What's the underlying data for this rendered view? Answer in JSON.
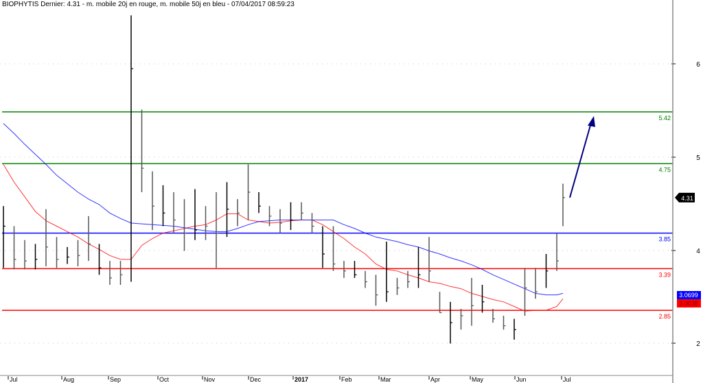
{
  "title": "BIOPHYTIS Dernier: 4.31 - m. mobile 20j en rouge, m. mobile 50j en bleu - 07/04/2017 08:59:23",
  "chart_data": {
    "type": "ohlc-bar",
    "title": "BIOPHYTIS Dernier: 4.31 - m. mobile 20j en rouge, m. mobile 50j en bleu - 07/04/2017 08:59:23",
    "y_tick_labels": [
      "6",
      "5",
      "4",
      "2"
    ],
    "x_tick_labels": [
      {
        "label": "Jul",
        "bold": false
      },
      {
        "label": "Aug",
        "bold": false
      },
      {
        "label": "Sep",
        "bold": false
      },
      {
        "label": "Oct",
        "bold": false
      },
      {
        "label": "Nov",
        "bold": false
      },
      {
        "label": "Dec",
        "bold": false
      },
      {
        "label": "2017",
        "bold": true
      },
      {
        "label": "Feb",
        "bold": false
      },
      {
        "label": "Mar",
        "bold": false
      },
      {
        "label": "Apr",
        "bold": false
      },
      {
        "label": "May",
        "bold": false
      },
      {
        "label": "Jun",
        "bold": false
      },
      {
        "label": "Jul",
        "bold": false
      }
    ],
    "grid": "dotted horizontal",
    "last_price": {
      "value": "4.31",
      "color": "#000000"
    },
    "ma50_label": {
      "value": "3.0699",
      "color": "#0000ff"
    },
    "ma20_label": {
      "value": "3.0038",
      "color": "#ff0000"
    },
    "levels": [
      {
        "value": 5.42,
        "label": "5.42",
        "color": "#008000"
      },
      {
        "value": 4.75,
        "label": "4.75",
        "color": "#008000"
      },
      {
        "value": 3.85,
        "label": "3.85",
        "color": "#0000ff"
      },
      {
        "value": 3.39,
        "label": "3.39",
        "color": "#ff0000"
      },
      {
        "value": 2.85,
        "label": "2.85",
        "color": "#ff0000"
      }
    ],
    "arrow": {
      "from": 4.31,
      "to": 5.42,
      "color": "#000080"
    },
    "dates": [
      "2016-06-27",
      "2016-07-04",
      "2016-07-11",
      "2016-07-18",
      "2016-07-25",
      "2016-08-01",
      "2016-08-08",
      "2016-08-15",
      "2016-08-22",
      "2016-08-29",
      "2016-09-05",
      "2016-09-12",
      "2016-09-19",
      "2016-09-26",
      "2016-10-03",
      "2016-10-10",
      "2016-10-17",
      "2016-10-24",
      "2016-10-31",
      "2016-11-07",
      "2016-11-14",
      "2016-11-21",
      "2016-11-28",
      "2016-12-05",
      "2016-12-12",
      "2016-12-19",
      "2016-12-26",
      "2017-01-02",
      "2017-01-09",
      "2017-01-16",
      "2017-01-23",
      "2017-01-30",
      "2017-02-06",
      "2017-02-13",
      "2017-02-20",
      "2017-02-27",
      "2017-03-06",
      "2017-03-13",
      "2017-03-20",
      "2017-03-27",
      "2017-04-03",
      "2017-04-10",
      "2017-04-17",
      "2017-04-24",
      "2017-05-01",
      "2017-05-08",
      "2017-05-15",
      "2017-05-22",
      "2017-05-29",
      "2017-06-05",
      "2017-06-12",
      "2017-06-19",
      "2017-06-26",
      "2017-07-03"
    ],
    "high": [
      4.2,
      3.94,
      3.76,
      3.71,
      4.16,
      3.8,
      3.67,
      3.76,
      4.07,
      3.71,
      3.49,
      3.49,
      6.67,
      5.45,
      4.65,
      4.47,
      4.38,
      4.29,
      4.42,
      4.2,
      4.38,
      4.51,
      4.29,
      4.74,
      4.38,
      4.2,
      4.16,
      4.25,
      4.25,
      4.11,
      3.94,
      3.94,
      3.49,
      3.49,
      3.36,
      3.31,
      3.74,
      3.27,
      3.36,
      3.67,
      3.8,
      3.09,
      2.96,
      2.87,
      3.27,
      3.18,
      2.87,
      2.78,
      2.74,
      3.4,
      3.4,
      3.58,
      3.85,
      4.49
    ],
    "low": [
      3.4,
      3.38,
      3.38,
      3.38,
      3.42,
      3.4,
      3.45,
      3.42,
      3.49,
      3.31,
      3.18,
      3.18,
      3.22,
      4.38,
      3.89,
      3.94,
      3.85,
      3.62,
      3.76,
      3.76,
      3.4,
      3.8,
      3.94,
      4.02,
      4.11,
      3.94,
      3.85,
      3.89,
      4.02,
      3.85,
      3.4,
      3.36,
      3.27,
      3.27,
      3.14,
      2.91,
      2.96,
      3.05,
      3.14,
      3.14,
      3.22,
      2.82,
      2.42,
      2.6,
      2.65,
      2.82,
      2.69,
      2.6,
      2.47,
      2.78,
      3.0,
      3.14,
      3.36,
      3.94
    ],
    "close": [
      3.94,
      3.51,
      3.49,
      3.51,
      3.67,
      3.51,
      3.54,
      3.56,
      3.71,
      3.4,
      3.27,
      3.31,
      5.98,
      4.69,
      4.2,
      4.11,
      4.02,
      3.85,
      3.89,
      3.94,
      3.85,
      4.16,
      4.11,
      4.38,
      4.2,
      4.07,
      3.98,
      4.02,
      4.11,
      3.94,
      3.58,
      3.45,
      3.36,
      3.31,
      3.22,
      3.05,
      3.09,
      3.14,
      3.22,
      3.31,
      3.36,
      2.82,
      2.69,
      2.78,
      2.91,
      2.96,
      2.74,
      2.65,
      2.6,
      3.14,
      3.09,
      3.36,
      3.49,
      4.31
    ],
    "series": [
      {
        "name": "m. mobile 20j",
        "color": "#ff0000",
        "values": [
          4.74,
          4.51,
          4.32,
          4.13,
          4.01,
          3.94,
          3.87,
          3.8,
          3.71,
          3.64,
          3.56,
          3.51,
          3.51,
          3.69,
          3.78,
          3.85,
          3.88,
          3.91,
          3.94,
          3.96,
          4.02,
          4.1,
          4.1,
          4.02,
          4.0,
          3.98,
          3.99,
          4.01,
          4.02,
          4.02,
          3.96,
          3.87,
          3.78,
          3.67,
          3.58,
          3.45,
          3.38,
          3.36,
          3.31,
          3.27,
          3.22,
          3.2,
          3.16,
          3.13,
          3.07,
          3.03,
          2.99,
          2.96,
          2.9,
          2.84,
          2.85,
          2.85,
          2.9,
          3.0
        ]
      },
      {
        "name": "m. mobile 50j",
        "color": "#0000ff",
        "values": [
          5.27,
          5.14,
          5.0,
          4.87,
          4.74,
          4.6,
          4.49,
          4.38,
          4.29,
          4.22,
          4.11,
          4.04,
          3.98,
          3.97,
          3.96,
          3.95,
          3.94,
          3.92,
          3.9,
          3.88,
          3.87,
          3.87,
          3.91,
          3.96,
          4.0,
          4.01,
          4.02,
          4.02,
          4.02,
          4.02,
          4.02,
          4.02,
          3.96,
          3.91,
          3.85,
          3.8,
          3.77,
          3.74,
          3.7,
          3.67,
          3.62,
          3.58,
          3.53,
          3.49,
          3.44,
          3.38,
          3.31,
          3.25,
          3.19,
          3.13,
          3.07,
          3.05,
          3.05,
          3.07
        ]
      }
    ]
  }
}
